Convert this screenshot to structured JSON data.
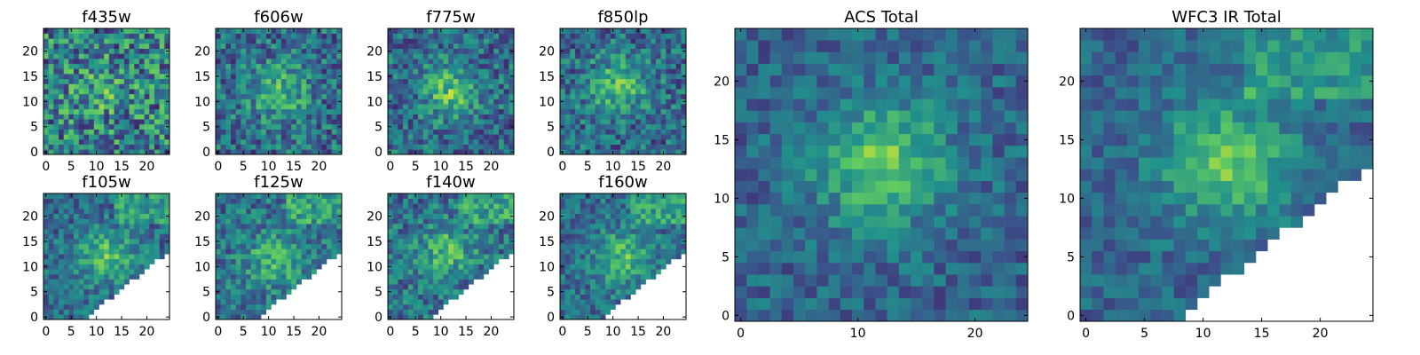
{
  "figure": {
    "colormap": "viridis",
    "colormap_stops": [
      "#440154",
      "#3b528b",
      "#21918c",
      "#5ec962",
      "#fde725"
    ],
    "masked_color": "#ffffff"
  },
  "chart_data": [
    {
      "type": "heatmap",
      "title": "f435w",
      "grid": [
        25,
        25
      ],
      "xlim": [
        0,
        24
      ],
      "ylim": [
        0,
        24
      ],
      "xticks": [
        0,
        5,
        10,
        15,
        20
      ],
      "yticks": [
        0,
        5,
        10,
        15,
        20
      ],
      "xtick_labels": [
        "0",
        "5",
        "10",
        "15",
        "20"
      ],
      "ytick_labels": [
        "0",
        "5",
        "10",
        "15",
        "20"
      ],
      "peak": [
        10,
        12
      ],
      "mask": "none",
      "contrast": 0.25,
      "noise": 0.55
    },
    {
      "type": "heatmap",
      "title": "f606w",
      "grid": [
        25,
        25
      ],
      "xlim": [
        0,
        24
      ],
      "ylim": [
        0,
        24
      ],
      "xticks": [
        0,
        5,
        10,
        15,
        20
      ],
      "yticks": [
        0,
        5,
        10,
        15,
        20
      ],
      "xtick_labels": [
        "0",
        "5",
        "10",
        "15",
        "20"
      ],
      "ytick_labels": [
        "0",
        "5",
        "10",
        "15",
        "20"
      ],
      "peak": [
        12,
        12
      ],
      "mask": "none",
      "contrast": 0.55,
      "noise": 0.4
    },
    {
      "type": "heatmap",
      "title": "f775w",
      "grid": [
        25,
        25
      ],
      "xlim": [
        0,
        24
      ],
      "ylim": [
        0,
        24
      ],
      "xticks": [
        0,
        5,
        10,
        15,
        20
      ],
      "yticks": [
        0,
        5,
        10,
        15,
        20
      ],
      "xtick_labels": [
        "0",
        "5",
        "10",
        "15",
        "20"
      ],
      "ytick_labels": [
        "0",
        "5",
        "10",
        "15",
        "20"
      ],
      "peak": [
        12,
        12
      ],
      "mask": "none",
      "contrast": 0.6,
      "noise": 0.38
    },
    {
      "type": "heatmap",
      "title": "f850lp",
      "grid": [
        25,
        25
      ],
      "xlim": [
        0,
        24
      ],
      "ylim": [
        0,
        24
      ],
      "xticks": [
        0,
        5,
        10,
        15,
        20
      ],
      "yticks": [
        0,
        5,
        10,
        15,
        20
      ],
      "xtick_labels": [
        "0",
        "5",
        "10",
        "15",
        "20"
      ],
      "ytick_labels": [
        "0",
        "5",
        "10",
        "15",
        "20"
      ],
      "peak": [
        11,
        13
      ],
      "mask": "none",
      "contrast": 0.6,
      "noise": 0.38
    },
    {
      "type": "heatmap",
      "title": "f105w",
      "grid": [
        25,
        25
      ],
      "xlim": [
        0,
        24
      ],
      "ylim": [
        0,
        24
      ],
      "xticks": [
        0,
        5,
        10,
        15,
        20
      ],
      "yticks": [
        0,
        5,
        10,
        15,
        20
      ],
      "xtick_labels": [
        "0",
        "5",
        "10",
        "15",
        "20"
      ],
      "ytick_labels": [
        "0",
        "5",
        "10",
        "15",
        "20"
      ],
      "peak": [
        12,
        12
      ],
      "mask": "lower-right",
      "contrast": 0.6,
      "noise": 0.3
    },
    {
      "type": "heatmap",
      "title": "f125w",
      "grid": [
        25,
        25
      ],
      "xlim": [
        0,
        24
      ],
      "ylim": [
        0,
        24
      ],
      "xticks": [
        0,
        5,
        10,
        15,
        20
      ],
      "yticks": [
        0,
        5,
        10,
        15,
        20
      ],
      "xtick_labels": [
        "0",
        "5",
        "10",
        "15",
        "20"
      ],
      "ytick_labels": [
        "0",
        "5",
        "10",
        "15",
        "20"
      ],
      "peak": [
        11,
        11
      ],
      "mask": "lower-right",
      "contrast": 0.5,
      "noise": 0.35
    },
    {
      "type": "heatmap",
      "title": "f140w",
      "grid": [
        25,
        25
      ],
      "xlim": [
        0,
        24
      ],
      "ylim": [
        0,
        24
      ],
      "xticks": [
        0,
        5,
        10,
        15,
        20
      ],
      "yticks": [
        0,
        5,
        10,
        15,
        20
      ],
      "xtick_labels": [
        "0",
        "5",
        "10",
        "15",
        "20"
      ],
      "ytick_labels": [
        "0",
        "5",
        "10",
        "15",
        "20"
      ],
      "peak": [
        11,
        13
      ],
      "mask": "lower-right",
      "contrast": 0.5,
      "noise": 0.35
    },
    {
      "type": "heatmap",
      "title": "f160w",
      "grid": [
        25,
        25
      ],
      "xlim": [
        0,
        24
      ],
      "ylim": [
        0,
        24
      ],
      "xticks": [
        0,
        5,
        10,
        15,
        20
      ],
      "yticks": [
        0,
        5,
        10,
        15,
        20
      ],
      "xtick_labels": [
        "0",
        "5",
        "10",
        "15",
        "20"
      ],
      "ytick_labels": [
        "0",
        "5",
        "10",
        "15",
        "20"
      ],
      "peak": [
        12,
        12
      ],
      "mask": "lower-right",
      "contrast": 0.55,
      "noise": 0.3
    },
    {
      "type": "heatmap",
      "title": "ACS Total",
      "grid": [
        25,
        25
      ],
      "xlim": [
        0,
        24
      ],
      "ylim": [
        0,
        24
      ],
      "xticks": [
        0,
        10,
        20
      ],
      "yticks": [
        0,
        5,
        10,
        15,
        20
      ],
      "xtick_labels": [
        "0",
        "10",
        "20"
      ],
      "ytick_labels": [
        "0",
        "5",
        "10",
        "15",
        "20"
      ],
      "peak": [
        12,
        13
      ],
      "mask": "none",
      "contrast": 0.7,
      "noise": 0.25
    },
    {
      "type": "heatmap",
      "title": "WFC3 IR Total",
      "grid": [
        25,
        25
      ],
      "xlim": [
        0,
        24
      ],
      "ylim": [
        0,
        24
      ],
      "xticks": [
        0,
        5,
        10,
        15,
        20
      ],
      "yticks": [
        0,
        5,
        10,
        15,
        20
      ],
      "xtick_labels": [
        "0",
        "5",
        "10",
        "15",
        "20"
      ],
      "ytick_labels": [
        "0",
        "5",
        "10",
        "15",
        "20"
      ],
      "peak": [
        12,
        13
      ],
      "mask": "lower-right",
      "contrast": 0.7,
      "noise": 0.22
    }
  ]
}
